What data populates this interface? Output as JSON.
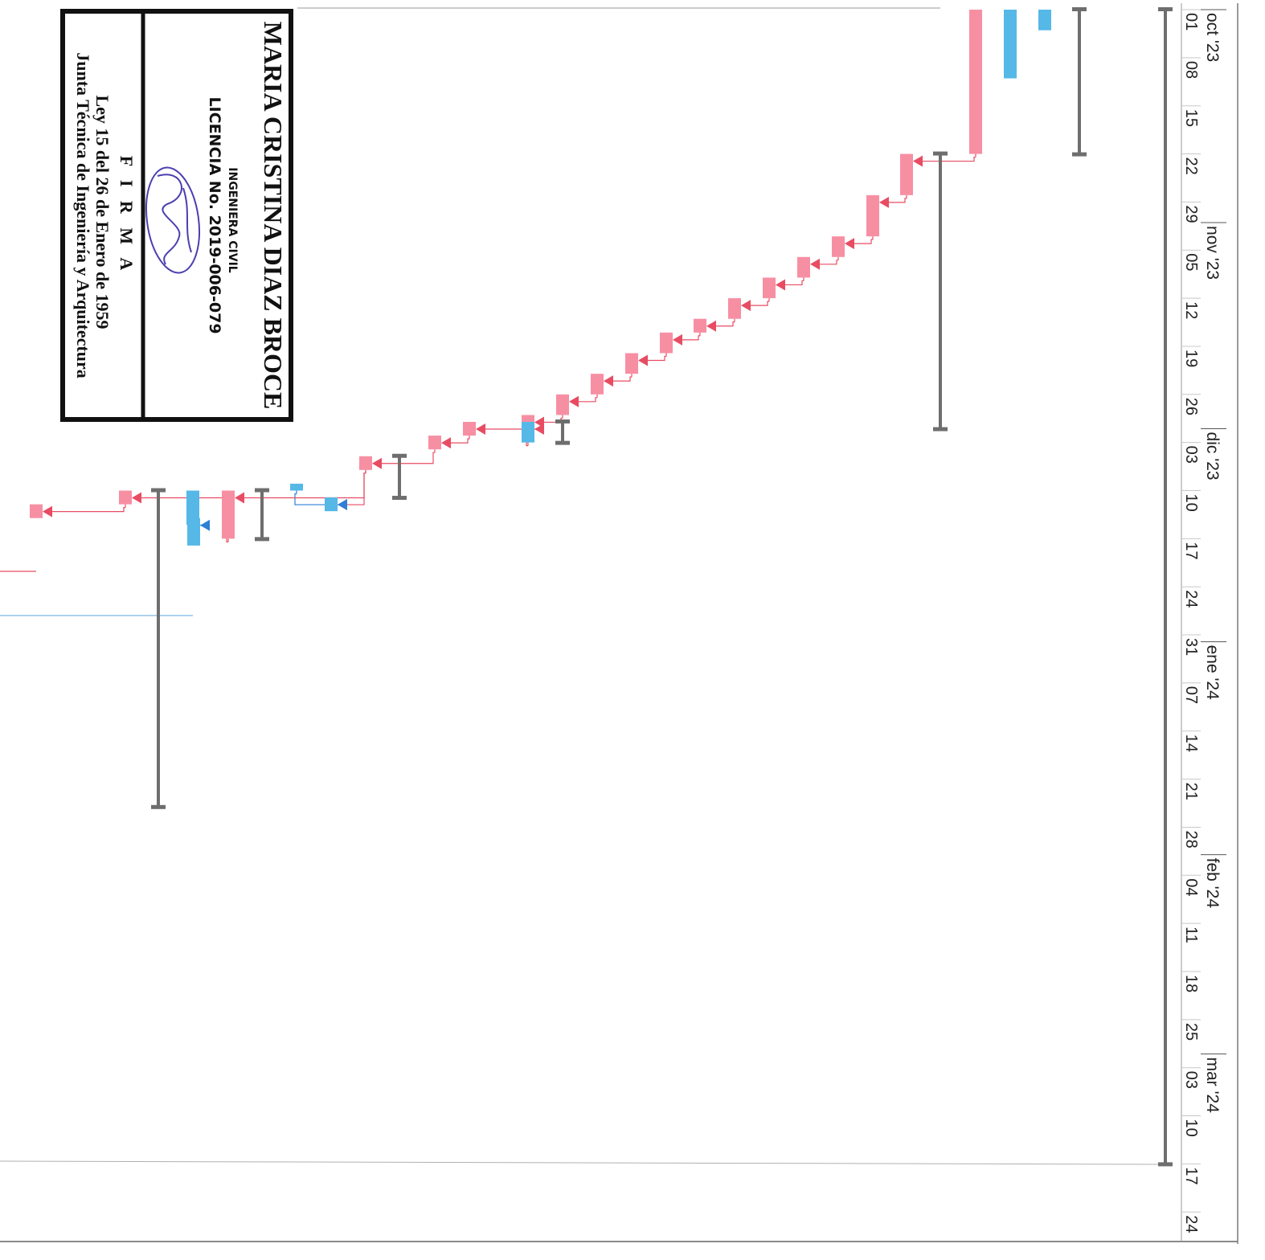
{
  "colors": {
    "critical_bar": "#f78fa3",
    "normal_bar": "#55b8e6",
    "critical_link": "#e84c63",
    "normal_link": "#2e7fd6",
    "summary": "#6e6e6e",
    "grid": "#c8c8c8"
  },
  "timescale": {
    "months": [
      "oct '23",
      "nov '23",
      "dic '23",
      "ene '24",
      "feb '24",
      "mar '24"
    ],
    "days": [
      "01",
      "08",
      "15",
      "22",
      "29",
      "05",
      "12",
      "19",
      "26",
      "03",
      "10",
      "17",
      "24",
      "31",
      "07",
      "14",
      "21",
      "28",
      "04",
      "11",
      "18",
      "25",
      "03",
      "10",
      "17",
      "24"
    ]
  },
  "chart_data": {
    "type": "gantt",
    "orientation": "rotated 90° clockwise (time axis runs top to bottom)",
    "time_axis": {
      "start": "2023-10-01",
      "end": "2024-03-30",
      "tick_interval": "weekly"
    },
    "tasks": [
      {
        "kind": "summary",
        "start": "2023-10-01",
        "end": "2024-03-17"
      },
      {
        "kind": "summary",
        "start": "2023-10-01",
        "end": "2023-10-22"
      },
      {
        "kind": "critical",
        "start": "2023-10-01",
        "end": "2023-10-22"
      },
      {
        "kind": "normal",
        "start": "2023-10-01",
        "end": "2023-10-11"
      },
      {
        "kind": "normal",
        "start": "2023-10-01",
        "end": "2023-10-04"
      },
      {
        "kind": "summary",
        "start": "2023-10-22",
        "end": "2023-12-01"
      },
      {
        "kind": "critical",
        "start": "2023-10-22",
        "end": "2023-10-28"
      },
      {
        "kind": "critical",
        "start": "2023-10-28",
        "end": "2023-11-03"
      },
      {
        "kind": "critical",
        "start": "2023-11-03",
        "end": "2023-11-06"
      },
      {
        "kind": "critical",
        "start": "2023-11-06",
        "end": "2023-11-09"
      },
      {
        "kind": "critical",
        "start": "2023-11-09",
        "end": "2023-11-12"
      },
      {
        "kind": "critical",
        "start": "2023-11-12",
        "end": "2023-11-15"
      },
      {
        "kind": "critical",
        "start": "2023-11-15",
        "end": "2023-11-17"
      },
      {
        "kind": "critical",
        "start": "2023-11-17",
        "end": "2023-11-20"
      },
      {
        "kind": "critical",
        "start": "2023-11-20",
        "end": "2023-11-23"
      },
      {
        "kind": "critical",
        "start": "2023-11-23",
        "end": "2023-11-26"
      },
      {
        "kind": "critical",
        "start": "2023-11-26",
        "end": "2023-11-29"
      },
      {
        "kind": "critical",
        "start": "2023-11-29",
        "end": "2023-12-02"
      },
      {
        "kind": "summary",
        "start": "2023-11-30",
        "end": "2023-12-03"
      },
      {
        "kind": "normal",
        "start": "2023-11-30",
        "end": "2023-12-03"
      },
      {
        "kind": "critical",
        "start": "2023-11-30",
        "end": "2023-12-02"
      },
      {
        "kind": "critical",
        "start": "2023-12-02",
        "end": "2023-12-04"
      },
      {
        "kind": "summary",
        "start": "2023-12-05",
        "end": "2023-12-11"
      },
      {
        "kind": "critical",
        "start": "2023-12-05",
        "end": "2023-12-07"
      },
      {
        "kind": "normal",
        "start": "2023-12-09",
        "end": "2023-12-10"
      },
      {
        "kind": "normal",
        "start": "2023-12-11",
        "end": "2023-12-13"
      },
      {
        "kind": "summary",
        "start": "2023-12-10",
        "end": "2023-12-17"
      },
      {
        "kind": "critical",
        "start": "2023-12-10",
        "end": "2023-12-17"
      },
      {
        "kind": "normal",
        "start": "2023-12-10",
        "end": "2023-12-15"
      },
      {
        "kind": "normal",
        "start": "2023-12-14",
        "end": "2023-12-18"
      },
      {
        "kind": "summary",
        "start": "2023-12-10",
        "end": "2024-01-25"
      },
      {
        "kind": "critical",
        "start": "2023-12-10",
        "end": "2023-12-12"
      },
      {
        "kind": "critical",
        "start": "2023-12-12",
        "end": "2023-12-14"
      }
    ],
    "links": [
      {
        "from": 2,
        "to": 6,
        "type": "critical"
      },
      {
        "from": 6,
        "to": 7,
        "type": "critical"
      },
      {
        "from": 7,
        "to": 8,
        "type": "critical"
      },
      {
        "from": 8,
        "to": 9,
        "type": "critical"
      },
      {
        "from": 9,
        "to": 10,
        "type": "critical"
      },
      {
        "from": 10,
        "to": 11,
        "type": "critical"
      },
      {
        "from": 11,
        "to": 12,
        "type": "critical"
      },
      {
        "from": 12,
        "to": 13,
        "type": "critical"
      },
      {
        "from": 13,
        "to": 14,
        "type": "critical"
      },
      {
        "from": 14,
        "to": 15,
        "type": "critical"
      },
      {
        "from": 15,
        "to": 16,
        "type": "critical"
      },
      {
        "from": 16,
        "to": 17,
        "type": "critical"
      },
      {
        "from": 17,
        "to": 19,
        "type": "critical"
      },
      {
        "from": 19,
        "to": 20,
        "type": "critical"
      },
      {
        "from": 20,
        "to": 21,
        "type": "critical"
      },
      {
        "from": 21,
        "to": 23,
        "type": "critical"
      },
      {
        "from": 23,
        "to": 25,
        "type": "critical"
      },
      {
        "from": 24,
        "to": 25,
        "type": "normal"
      },
      {
        "from": 23,
        "to": 27,
        "type": "critical"
      },
      {
        "from": 28,
        "to": 29,
        "type": "normal"
      },
      {
        "from": 27,
        "to": 31,
        "type": "critical"
      },
      {
        "from": 31,
        "to": 32,
        "type": "critical"
      }
    ]
  },
  "stamp": {
    "name": "MARIA CRISTINA DIAZ BROCE",
    "profession": "INGENIERA CIVIL",
    "license": "LICENCIA No. 2019-006-079",
    "signature_caption": "F I R M A",
    "law": "Ley 15 del 26 de Enero de 1959",
    "board": "Junta Técnica de Ingeniería y Arquitectura"
  }
}
